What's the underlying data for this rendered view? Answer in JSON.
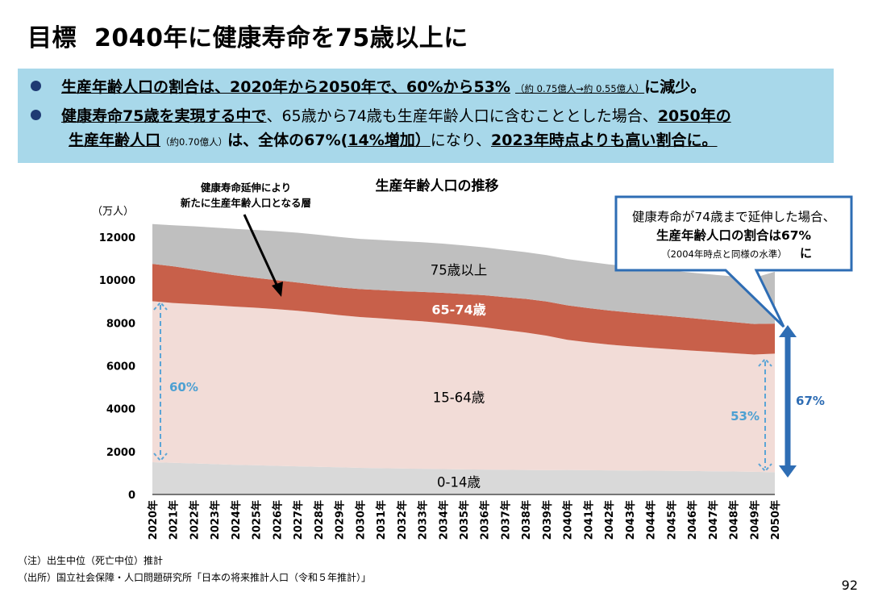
{
  "title": {
    "label": "目標",
    "main": "2040年に健康寿命を75歳以上に"
  },
  "summary": {
    "line1": {
      "main": "生産年齢人口の割合は、2020年から2050年で、60%から53%",
      "small": "（約 0.75億人→約 0.55億人）",
      "end": "に減少。"
    },
    "line2": {
      "bold": "健康寿命75歳を実現する中で",
      "rest": "、65歳から74歳も生産年齢人口に含むこととした場合、",
      "end": "2050年の"
    },
    "line3": {
      "a": "生産年齢人口",
      "small": "（約0.70億人）",
      "b": "は、全体の67%(",
      "c": "14%増加）",
      "d": "になり、",
      "e": "2023年時点よりも高い割合に。"
    }
  },
  "chart_labels": {
    "annotation_line1": "健康寿命延伸により",
    "annotation_line2": "新たに生産年齢人口となる層",
    "callout_line1": "健康寿命が74歳まで延伸した場合、",
    "callout_line2": "生産年齢人口の割合は67%",
    "callout_line3": "（2004年時点と同様の水準）",
    "callout_ni": "に",
    "pct_60": "60%",
    "pct_53": "53%",
    "pct_67": "67%"
  },
  "chart_data": {
    "type": "area",
    "stacked": true,
    "title": "生産年齢人口の推移",
    "ylabel": "（万人）",
    "ylim": [
      0,
      12000
    ],
    "yticks": [
      0,
      2000,
      4000,
      6000,
      8000,
      10000,
      12000
    ],
    "categories": [
      "2020年",
      "2021年",
      "2022年",
      "2023年",
      "2024年",
      "2025年",
      "2026年",
      "2027年",
      "2028年",
      "2029年",
      "2030年",
      "2031年",
      "2032年",
      "2033年",
      "2034年",
      "2035年",
      "2036年",
      "2037年",
      "2038年",
      "2039年",
      "2040年",
      "2041年",
      "2042年",
      "2043年",
      "2044年",
      "2045年",
      "2046年",
      "2047年",
      "2048年",
      "2049年",
      "2050年"
    ],
    "series": [
      {
        "name": "0-14歳",
        "color": "#d9d9d9",
        "label_color": "#000000",
        "values": [
          1503,
          1478,
          1450,
          1417,
          1383,
          1363,
          1336,
          1313,
          1290,
          1268,
          1240,
          1225,
          1212,
          1197,
          1186,
          1169,
          1161,
          1152,
          1142,
          1133,
          1142,
          1133,
          1125,
          1119,
          1112,
          1103,
          1095,
          1083,
          1072,
          1057,
          1041
        ]
      },
      {
        "name": "15-64歳",
        "color": "#f2dcd7",
        "label_color": "#000000",
        "values": [
          7509,
          7450,
          7430,
          7402,
          7376,
          7347,
          7305,
          7256,
          7184,
          7097,
          7036,
          6989,
          6930,
          6880,
          6809,
          6730,
          6633,
          6518,
          6411,
          6272,
          6071,
          5963,
          5866,
          5794,
          5731,
          5674,
          5616,
          5569,
          5518,
          5468,
          5529
        ]
      },
      {
        "name": "65-74歳",
        "color": "#c8604a",
        "label_color": "#ffffff",
        "values": [
          1740,
          1712,
          1620,
          1536,
          1458,
          1391,
          1349,
          1315,
          1293,
          1292,
          1301,
          1319,
          1339,
          1371,
          1411,
          1451,
          1496,
          1534,
          1567,
          1593,
          1606,
          1598,
          1591,
          1576,
          1557,
          1538,
          1513,
          1480,
          1451,
          1427,
          1398
        ]
      },
      {
        "name": "75歳以上",
        "color": "#bfbfbf",
        "label_color": "#000000",
        "values": [
          1860,
          1913,
          2009,
          2091,
          2168,
          2235,
          2288,
          2324,
          2346,
          2352,
          2345,
          2337,
          2331,
          2316,
          2292,
          2265,
          2236,
          2205,
          2180,
          2164,
          2162,
          2157,
          2148,
          2143,
          2139,
          2128,
          2121,
          2123,
          2128,
          2152,
          2417
        ]
      }
    ]
  },
  "footnotes": {
    "note1": "（注）出生中位（死亡中位）推計",
    "note2": "（出所）国立社会保障・人口問題研究所「日本の将来推計人口（令和５年推計）」"
  },
  "page_number": "92"
}
